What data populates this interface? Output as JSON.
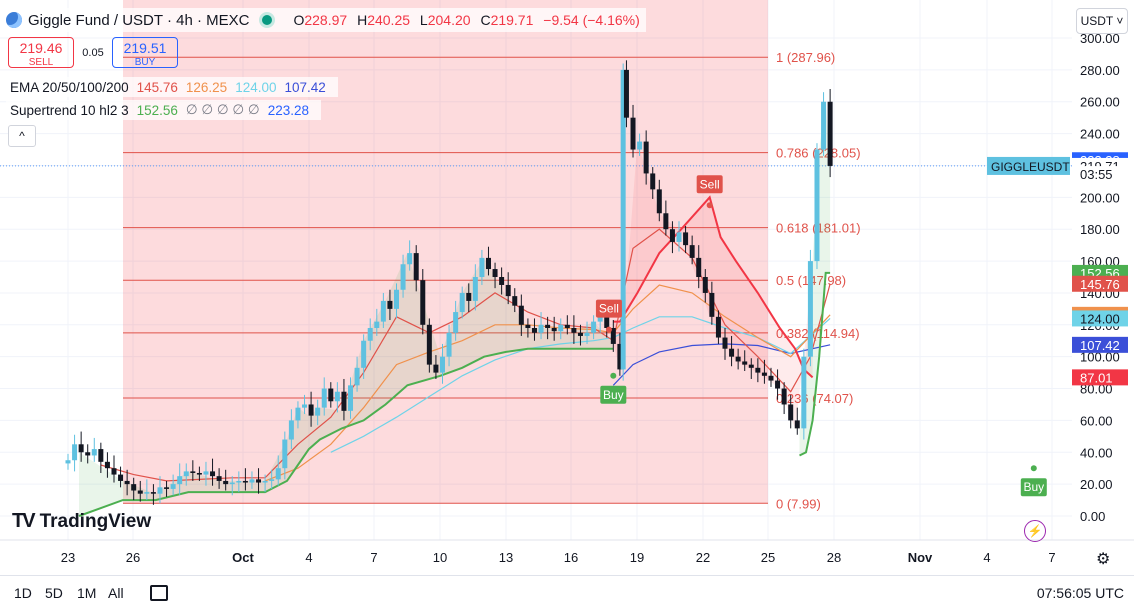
{
  "header": {
    "symbol": "Giggle Fund / USDT · 4h · MEXC",
    "open_label": "O",
    "open": "228.97",
    "high_label": "H",
    "high": "240.25",
    "low_label": "L",
    "low": "204.20",
    "close_label": "C",
    "close": "219.71",
    "change": "−9.54 (−4.16%)"
  },
  "trade": {
    "sell_price": "219.46",
    "sell_label": "SELL",
    "spread": "0.05",
    "buy_price": "219.51",
    "buy_label": "BUY"
  },
  "indicators": {
    "ema_label": "EMA 20/50/100/200",
    "ema_values": [
      "145.76",
      "126.25",
      "124.00",
      "107.42"
    ],
    "ema_colors": [
      "#e0524a",
      "#f0914c",
      "#6fd3e8",
      "#3b4fd8"
    ],
    "supertrend_label": "Supertrend 10 hl2 3",
    "supertrend_value": "152.56",
    "supertrend_nulls": "∅ ∅ ∅ ∅ ∅",
    "supertrend_value2": "223.28"
  },
  "collapse_label": "^",
  "currency": "USDT ˅",
  "brand": "TradingView",
  "brand_mark": "TV",
  "price_axis": {
    "ticks": [
      "300.00",
      "280.00",
      "260.00",
      "240.00",
      "220.00",
      "200.00",
      "180.00",
      "160.00",
      "140.00",
      "120.00",
      "100.00",
      "80.00",
      "60.00",
      "40.00",
      "20.00",
      "0.00"
    ],
    "tick_values": [
      300,
      280,
      260,
      240,
      220,
      200,
      180,
      160,
      140,
      120,
      100,
      80,
      60,
      40,
      20,
      0
    ],
    "badges": [
      {
        "text": "223.28",
        "value": 223.28,
        "color": "#2962ff",
        "fg": "#ffffff"
      },
      {
        "text": "219.71",
        "value": 219.71,
        "color": "#ffffff",
        "fg": "#131722"
      },
      {
        "text": "03:55",
        "value": 214.6,
        "color": "#ffffff",
        "fg": "#131722"
      },
      {
        "text": "152.56",
        "value": 152.56,
        "color": "#4caf50",
        "fg": "#ffffff"
      },
      {
        "text": "145.76",
        "value": 145.76,
        "color": "#e0524a",
        "fg": "#ffffff"
      },
      {
        "text": "126.25",
        "value": 126.25,
        "color": "#f0914c",
        "fg": "#ffffff"
      },
      {
        "text": "124.00",
        "value": 124.0,
        "color": "#6fd3e8",
        "fg": "#131722"
      },
      {
        "text": "107.42",
        "value": 107.42,
        "color": "#3b4fd8",
        "fg": "#ffffff"
      },
      {
        "text": "87.01",
        "value": 87.01,
        "color": "#f23645",
        "fg": "#ffffff"
      }
    ],
    "symbol_tag": "GIGGLEUSDT"
  },
  "time_axis": {
    "labels": [
      "23",
      "26",
      "Oct",
      "4",
      "7",
      "10",
      "13",
      "16",
      "19",
      "22",
      "25",
      "28",
      "Nov",
      "4",
      "7"
    ],
    "bold": [
      false,
      false,
      true,
      false,
      false,
      false,
      false,
      false,
      false,
      false,
      false,
      false,
      true,
      false,
      false
    ]
  },
  "timeframes": [
    "1D",
    "5D",
    "1M",
    "All"
  ],
  "clock": "07:56:05 UTC",
  "chart_data": {
    "type": "candlestick",
    "y_range": [
      0,
      300
    ],
    "x_range_days": [
      "Sep 23",
      "Nov 7"
    ],
    "fib_retracement": {
      "range": [
        "Sep 26",
        "Oct 25"
      ],
      "levels": [
        {
          "ratio": "1",
          "price": 287.96,
          "label": "1 (287.96)"
        },
        {
          "ratio": "0.786",
          "price": 228.05,
          "label": "0.786 (228.05)"
        },
        {
          "ratio": "0.618",
          "price": 181.01,
          "label": "0.618 (181.01)"
        },
        {
          "ratio": "0.5",
          "price": 147.98,
          "label": "0.5 (147.98)"
        },
        {
          "ratio": "0.382",
          "price": 114.94,
          "label": "0.382 (114.94)"
        },
        {
          "ratio": "0.236",
          "price": 74.07,
          "label": "0.236 (74.07)"
        },
        {
          "ratio": "0",
          "price": 7.99,
          "label": "0 (7.99)"
        }
      ]
    },
    "signals": [
      {
        "type": "Buy",
        "label": "Buy",
        "x": 24.9,
        "price": 88
      },
      {
        "type": "Sell",
        "label": "Sell",
        "x": 24.7,
        "price": 117
      },
      {
        "type": "Sell",
        "label": "Sell",
        "x": 29.3,
        "price": 195
      },
      {
        "type": "Buy",
        "label": "Buy",
        "x": 44.1,
        "price": 30
      }
    ],
    "closes": [
      [
        0.0,
        35
      ],
      [
        0.3,
        45
      ],
      [
        0.6,
        40
      ],
      [
        0.9,
        38
      ],
      [
        1.2,
        42
      ],
      [
        1.5,
        34
      ],
      [
        1.8,
        30
      ],
      [
        2.1,
        26
      ],
      [
        2.4,
        22
      ],
      [
        2.7,
        20
      ],
      [
        3.0,
        16
      ],
      [
        3.3,
        14
      ],
      [
        3.6,
        15
      ],
      [
        3.9,
        14
      ],
      [
        4.2,
        18
      ],
      [
        4.5,
        17
      ],
      [
        4.8,
        20
      ],
      [
        5.1,
        25
      ],
      [
        5.4,
        28
      ],
      [
        5.7,
        27
      ],
      [
        6.0,
        26
      ],
      [
        6.3,
        28
      ],
      [
        6.6,
        25
      ],
      [
        6.9,
        22
      ],
      [
        7.2,
        20
      ],
      [
        7.5,
        21
      ],
      [
        7.8,
        22
      ],
      [
        8.1,
        21
      ],
      [
        8.4,
        23
      ],
      [
        8.7,
        21
      ],
      [
        9.0,
        22
      ],
      [
        9.3,
        23
      ],
      [
        9.6,
        30
      ],
      [
        9.9,
        48
      ],
      [
        10.2,
        60
      ],
      [
        10.5,
        68
      ],
      [
        10.8,
        70
      ],
      [
        11.1,
        63
      ],
      [
        11.4,
        68
      ],
      [
        11.7,
        80
      ],
      [
        12.0,
        72
      ],
      [
        12.3,
        78
      ],
      [
        12.6,
        66
      ],
      [
        12.9,
        82
      ],
      [
        13.2,
        93
      ],
      [
        13.5,
        110
      ],
      [
        13.8,
        118
      ],
      [
        14.1,
        122
      ],
      [
        14.4,
        135
      ],
      [
        14.7,
        130
      ],
      [
        15.0,
        142
      ],
      [
        15.3,
        158
      ],
      [
        15.6,
        165
      ],
      [
        15.9,
        148
      ],
      [
        16.2,
        120
      ],
      [
        16.5,
        95
      ],
      [
        16.8,
        90
      ],
      [
        17.1,
        100
      ],
      [
        17.4,
        115
      ],
      [
        17.7,
        128
      ],
      [
        18.0,
        140
      ],
      [
        18.3,
        135
      ],
      [
        18.6,
        150
      ],
      [
        18.9,
        162
      ],
      [
        19.2,
        155
      ],
      [
        19.5,
        150
      ],
      [
        19.8,
        145
      ],
      [
        20.1,
        138
      ],
      [
        20.4,
        132
      ],
      [
        20.7,
        120
      ],
      [
        21.0,
        118
      ],
      [
        21.3,
        115
      ],
      [
        21.6,
        120
      ],
      [
        21.9,
        118
      ],
      [
        22.2,
        116
      ],
      [
        22.5,
        120
      ],
      [
        22.8,
        118
      ],
      [
        23.1,
        115
      ],
      [
        23.4,
        113
      ],
      [
        23.7,
        115
      ],
      [
        24.0,
        122
      ],
      [
        24.3,
        125
      ],
      [
        24.6,
        118
      ],
      [
        24.9,
        108
      ],
      [
        25.2,
        92
      ],
      [
        25.35,
        280
      ],
      [
        25.5,
        250
      ],
      [
        25.8,
        230
      ],
      [
        26.1,
        235
      ],
      [
        26.4,
        215
      ],
      [
        26.7,
        205
      ],
      [
        27.0,
        190
      ],
      [
        27.3,
        180
      ],
      [
        27.6,
        172
      ],
      [
        27.9,
        178
      ],
      [
        28.2,
        170
      ],
      [
        28.5,
        162
      ],
      [
        28.8,
        150
      ],
      [
        29.1,
        140
      ],
      [
        29.4,
        125
      ],
      [
        29.7,
        112
      ],
      [
        30.0,
        105
      ],
      [
        30.3,
        100
      ],
      [
        30.6,
        97
      ],
      [
        30.9,
        95
      ],
      [
        31.2,
        93
      ],
      [
        31.5,
        90
      ],
      [
        31.8,
        88
      ],
      [
        32.1,
        85
      ],
      [
        32.4,
        80
      ],
      [
        32.7,
        70
      ],
      [
        33.0,
        60
      ],
      [
        33.3,
        55
      ],
      [
        33.6,
        100
      ],
      [
        33.9,
        160
      ],
      [
        34.2,
        230
      ],
      [
        34.5,
        260
      ],
      [
        34.8,
        219.71
      ]
    ],
    "ema20": [
      [
        1.5,
        32
      ],
      [
        3,
        26
      ],
      [
        4.5,
        22
      ],
      [
        6,
        23
      ],
      [
        7.5,
        24
      ],
      [
        9,
        24
      ],
      [
        10.5,
        45
      ],
      [
        12,
        62
      ],
      [
        13.5,
        90
      ],
      [
        15,
        125
      ],
      [
        16.5,
        115
      ],
      [
        18,
        125
      ],
      [
        19.5,
        140
      ],
      [
        21,
        128
      ],
      [
        22.5,
        120
      ],
      [
        24,
        118
      ],
      [
        24.9,
        110
      ],
      [
        25.8,
        168
      ],
      [
        27,
        180
      ],
      [
        28.5,
        162
      ],
      [
        30,
        120
      ],
      [
        31.5,
        100
      ],
      [
        33,
        78
      ],
      [
        33.9,
        100
      ],
      [
        34.8,
        145.76
      ]
    ],
    "ema50": [
      [
        9,
        22
      ],
      [
        10.5,
        30
      ],
      [
        12,
        45
      ],
      [
        13.5,
        68
      ],
      [
        15,
        95
      ],
      [
        16.5,
        103
      ],
      [
        18,
        110
      ],
      [
        19.5,
        120
      ],
      [
        21,
        120
      ],
      [
        22.5,
        118
      ],
      [
        24,
        117
      ],
      [
        24.9,
        115
      ],
      [
        25.8,
        130
      ],
      [
        27,
        145
      ],
      [
        28.5,
        140
      ],
      [
        30,
        125
      ],
      [
        31.5,
        112
      ],
      [
        33,
        100
      ],
      [
        34.8,
        126.25
      ]
    ],
    "ema100": [
      [
        12,
        40
      ],
      [
        13.5,
        50
      ],
      [
        15,
        62
      ],
      [
        16.5,
        75
      ],
      [
        18,
        88
      ],
      [
        19.5,
        98
      ],
      [
        21,
        105
      ],
      [
        22.5,
        108
      ],
      [
        24,
        110
      ],
      [
        24.9,
        112
      ],
      [
        25.8,
        118
      ],
      [
        27,
        125
      ],
      [
        28.5,
        125
      ],
      [
        30,
        118
      ],
      [
        31.5,
        112
      ],
      [
        33,
        102
      ],
      [
        34.8,
        124.0
      ]
    ],
    "ema200": [
      [
        24.9,
        82
      ],
      [
        25.8,
        95
      ],
      [
        27,
        103
      ],
      [
        28.5,
        107
      ],
      [
        30,
        108
      ],
      [
        31.5,
        107
      ],
      [
        33,
        102
      ],
      [
        34.8,
        107.42
      ]
    ],
    "supertrend_up": [
      [
        0.5,
        0
      ],
      [
        2.5,
        10
      ],
      [
        4,
        10
      ],
      [
        5.5,
        15
      ],
      [
        7,
        15
      ],
      [
        9,
        15
      ],
      [
        10,
        22
      ],
      [
        10.5,
        32
      ],
      [
        11,
        42
      ],
      [
        11.5,
        48
      ],
      [
        12.5,
        55
      ],
      [
        13.5,
        60
      ],
      [
        14.5,
        70
      ],
      [
        15.5,
        82
      ],
      [
        17,
        88
      ],
      [
        18,
        93
      ],
      [
        19,
        100
      ],
      [
        20,
        103
      ],
      [
        21,
        105
      ],
      [
        22,
        105
      ],
      [
        23,
        105
      ],
      [
        24,
        105
      ],
      [
        24.9,
        105
      ]
    ],
    "supertrend_down": [
      [
        24.9,
        122
      ],
      [
        25.2,
        122
      ],
      [
        26,
        140
      ],
      [
        27,
        165
      ],
      [
        28,
        180
      ],
      [
        29.3,
        200
      ],
      [
        29.8,
        175
      ],
      [
        30.5,
        160
      ],
      [
        31.5,
        140
      ],
      [
        32.5,
        118
      ],
      [
        33.2,
        105
      ],
      [
        33.6,
        92
      ],
      [
        34,
        87
      ]
    ],
    "supertrend_up2": [
      [
        33.4,
        38
      ],
      [
        33.7,
        40
      ],
      [
        34.0,
        60
      ],
      [
        34.3,
        100
      ],
      [
        34.6,
        152.56
      ],
      [
        34.8,
        152.56
      ]
    ]
  }
}
